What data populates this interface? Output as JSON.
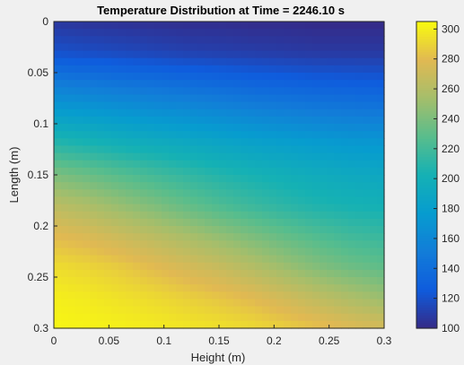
{
  "chart_data": {
    "type": "heatmap",
    "title": "Temperature Distribution at Time = 2246.10 s",
    "xlabel": "Height (m)",
    "ylabel": "Length (m)",
    "xlim": [
      0,
      0.3
    ],
    "ylim": [
      0,
      0.3
    ],
    "y_direction": "reversed",
    "x_ticks": [
      "0",
      "0.05",
      "0.1",
      "0.15",
      "0.2",
      "0.25",
      "0.3"
    ],
    "y_ticks": [
      "0",
      "0.05",
      "0.1",
      "0.15",
      "0.2",
      "0.25",
      "0.3"
    ],
    "colorbar": {
      "limits": [
        100,
        305
      ],
      "ticks": [
        "100",
        "120",
        "140",
        "160",
        "180",
        "200",
        "220",
        "240",
        "260",
        "280",
        "300"
      ],
      "colormap": "parula",
      "placement": "right"
    },
    "x": [
      0,
      0.03,
      0.06,
      0.09,
      0.12,
      0.15,
      0.18,
      0.21,
      0.24,
      0.27,
      0.3
    ],
    "y": [
      0,
      0.03,
      0.06,
      0.09,
      0.12,
      0.15,
      0.18,
      0.21,
      0.24,
      0.27,
      0.3
    ],
    "values": [
      [
        107,
        105,
        104,
        103,
        102,
        102,
        101,
        101,
        100,
        100,
        100
      ],
      [
        120,
        118,
        116,
        114,
        112,
        111,
        110,
        109,
        108,
        108,
        108
      ],
      [
        150,
        147,
        144,
        141,
        138,
        135,
        132,
        130,
        128,
        127,
        126
      ],
      [
        180,
        177,
        173,
        169,
        166,
        162,
        158,
        155,
        152,
        150,
        149
      ],
      [
        210,
        205,
        200,
        196,
        192,
        188,
        184,
        181,
        178,
        175,
        174
      ],
      [
        240,
        234,
        227,
        220,
        214,
        208,
        203,
        199,
        195,
        192,
        190
      ],
      [
        263,
        257,
        249,
        241,
        232,
        224,
        217,
        211,
        206,
        203,
        201
      ],
      [
        280,
        276,
        270,
        263,
        256,
        248,
        240,
        232,
        225,
        219,
        216
      ],
      [
        293,
        290,
        286,
        280,
        274,
        268,
        260,
        251,
        242,
        235,
        230
      ],
      [
        300,
        298,
        295,
        292,
        288,
        284,
        279,
        272,
        264,
        257,
        250
      ],
      [
        303,
        302,
        301,
        299,
        297,
        295,
        292,
        288,
        283,
        278,
        274
      ]
    ]
  }
}
